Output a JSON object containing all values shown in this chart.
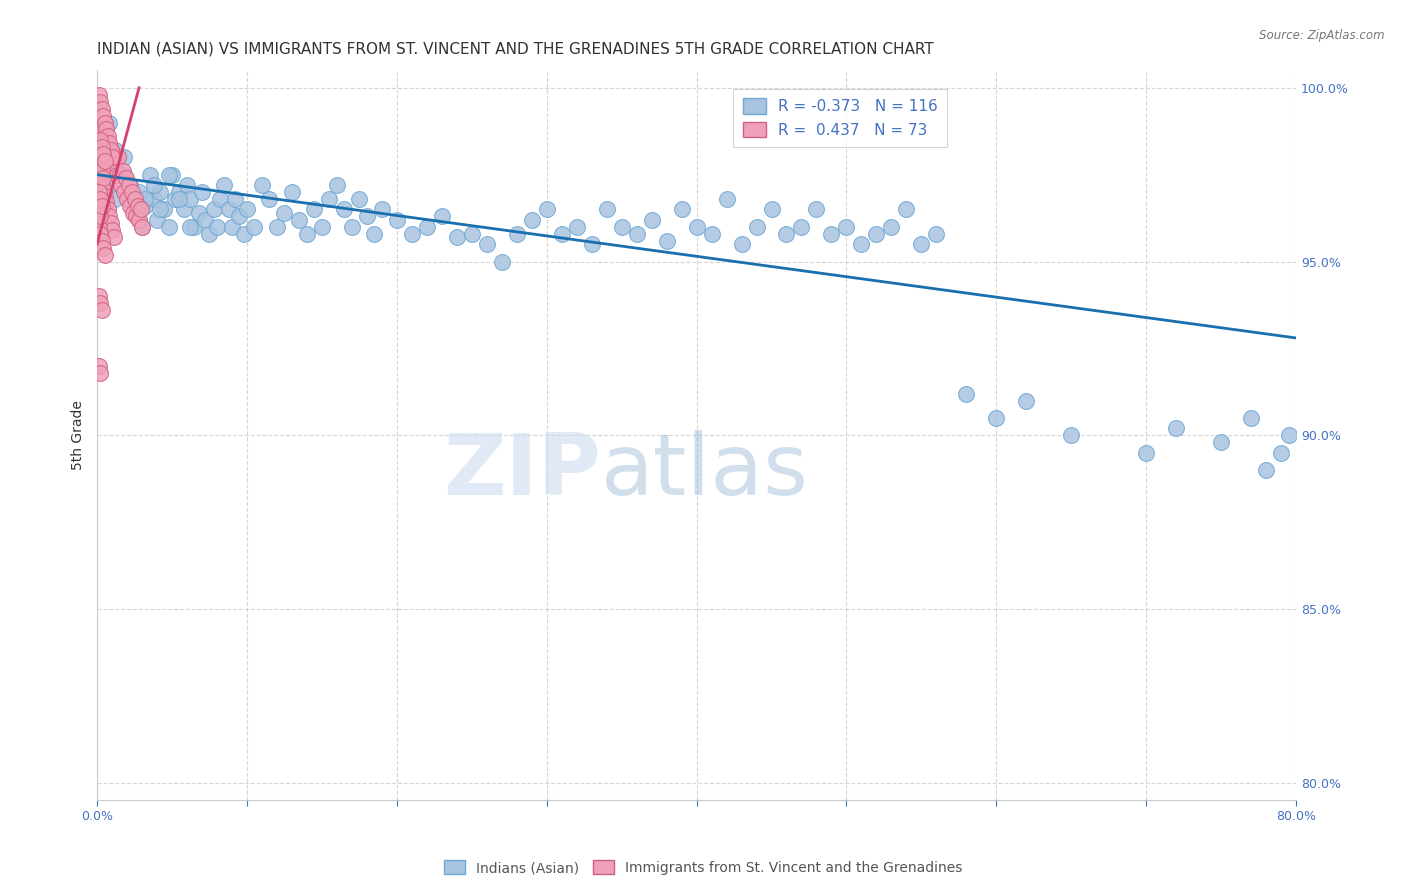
{
  "title": "INDIAN (ASIAN) VS IMMIGRANTS FROM ST. VINCENT AND THE GRENADINES 5TH GRADE CORRELATION CHART",
  "source": "Source: ZipAtlas.com",
  "ylabel": "5th Grade",
  "xlim": [
    0.0,
    0.8
  ],
  "ylim": [
    0.795,
    1.005
  ],
  "yticks": [
    0.8,
    0.85,
    0.9,
    0.95,
    1.0
  ],
  "ytick_labels": [
    "80.0%",
    "85.0%",
    "90.0%",
    "95.0%",
    "100.0%"
  ],
  "xticks": [
    0.0,
    0.1,
    0.2,
    0.3,
    0.4,
    0.5,
    0.6,
    0.7,
    0.8
  ],
  "xtick_labels": [
    "0.0%",
    "",
    "",
    "",
    "",
    "",
    "",
    "",
    "80.0%"
  ],
  "blue_color": "#a8c4e0",
  "pink_color": "#f0a0b8",
  "blue_line_color": "#1a6faf",
  "pink_line_color": "#d44070",
  "legend_blue_R": "-0.373",
  "legend_blue_N": "116",
  "legend_pink_R": "0.437",
  "legend_pink_N": "73",
  "legend_label_blue": "Indians (Asian)",
  "legend_label_pink": "Immigrants from St. Vincent and the Grenadines",
  "watermark_zip": "ZIP",
  "watermark_atlas": "atlas",
  "blue_scatter_x": [
    0.005,
    0.008,
    0.01,
    0.012,
    0.015,
    0.018,
    0.02,
    0.022,
    0.025,
    0.028,
    0.03,
    0.032,
    0.035,
    0.038,
    0.04,
    0.042,
    0.045,
    0.048,
    0.05,
    0.052,
    0.055,
    0.058,
    0.06,
    0.062,
    0.065,
    0.068,
    0.07,
    0.072,
    0.075,
    0.078,
    0.08,
    0.082,
    0.085,
    0.088,
    0.09,
    0.092,
    0.095,
    0.098,
    0.1,
    0.105,
    0.11,
    0.115,
    0.12,
    0.125,
    0.13,
    0.135,
    0.14,
    0.145,
    0.15,
    0.155,
    0.16,
    0.165,
    0.17,
    0.175,
    0.18,
    0.185,
    0.19,
    0.2,
    0.21,
    0.22,
    0.23,
    0.24,
    0.25,
    0.26,
    0.27,
    0.28,
    0.29,
    0.3,
    0.31,
    0.32,
    0.33,
    0.34,
    0.35,
    0.36,
    0.37,
    0.38,
    0.39,
    0.4,
    0.41,
    0.42,
    0.43,
    0.44,
    0.45,
    0.46,
    0.47,
    0.48,
    0.49,
    0.5,
    0.51,
    0.52,
    0.53,
    0.54,
    0.55,
    0.56,
    0.58,
    0.6,
    0.62,
    0.65,
    0.7,
    0.72,
    0.75,
    0.77,
    0.78,
    0.79,
    0.795,
    0.008,
    0.012,
    0.018,
    0.022,
    0.028,
    0.032,
    0.038,
    0.042,
    0.048,
    0.055,
    0.062
  ],
  "blue_scatter_y": [
    0.985,
    0.99,
    0.978,
    0.982,
    0.975,
    0.98,
    0.968,
    0.972,
    0.965,
    0.97,
    0.96,
    0.966,
    0.975,
    0.968,
    0.962,
    0.97,
    0.965,
    0.96,
    0.975,
    0.968,
    0.97,
    0.965,
    0.972,
    0.968,
    0.96,
    0.964,
    0.97,
    0.962,
    0.958,
    0.965,
    0.96,
    0.968,
    0.972,
    0.965,
    0.96,
    0.968,
    0.963,
    0.958,
    0.965,
    0.96,
    0.972,
    0.968,
    0.96,
    0.964,
    0.97,
    0.962,
    0.958,
    0.965,
    0.96,
    0.968,
    0.972,
    0.965,
    0.96,
    0.968,
    0.963,
    0.958,
    0.965,
    0.962,
    0.958,
    0.96,
    0.963,
    0.957,
    0.958,
    0.955,
    0.95,
    0.958,
    0.962,
    0.965,
    0.958,
    0.96,
    0.955,
    0.965,
    0.96,
    0.958,
    0.962,
    0.956,
    0.965,
    0.96,
    0.958,
    0.968,
    0.955,
    0.96,
    0.965,
    0.958,
    0.96,
    0.965,
    0.958,
    0.96,
    0.955,
    0.958,
    0.96,
    0.965,
    0.955,
    0.958,
    0.912,
    0.905,
    0.91,
    0.9,
    0.895,
    0.902,
    0.898,
    0.905,
    0.89,
    0.895,
    0.9,
    0.972,
    0.968,
    0.975,
    0.97,
    0.962,
    0.968,
    0.972,
    0.965,
    0.975,
    0.968,
    0.96
  ],
  "pink_scatter_x": [
    0.001,
    0.002,
    0.003,
    0.004,
    0.005,
    0.006,
    0.007,
    0.008,
    0.009,
    0.01,
    0.011,
    0.012,
    0.013,
    0.014,
    0.015,
    0.016,
    0.017,
    0.018,
    0.019,
    0.02,
    0.021,
    0.022,
    0.023,
    0.024,
    0.025,
    0.026,
    0.027,
    0.028,
    0.029,
    0.03,
    0.001,
    0.002,
    0.003,
    0.004,
    0.005,
    0.006,
    0.007,
    0.008,
    0.009,
    0.01,
    0.002,
    0.003,
    0.004,
    0.005,
    0.006,
    0.007,
    0.008,
    0.009,
    0.01,
    0.011,
    0.001,
    0.002,
    0.003,
    0.004,
    0.005,
    0.001,
    0.002,
    0.003,
    0.001,
    0.002,
    0.001,
    0.002,
    0.001,
    0.002,
    0.003,
    0.004,
    0.002,
    0.003,
    0.004,
    0.005,
    0.001,
    0.002,
    0.003
  ],
  "pink_scatter_y": [
    0.99,
    0.985,
    0.988,
    0.982,
    0.986,
    0.98,
    0.984,
    0.978,
    0.982,
    0.976,
    0.98,
    0.978,
    0.975,
    0.98,
    0.975,
    0.972,
    0.976,
    0.97,
    0.974,
    0.968,
    0.972,
    0.966,
    0.97,
    0.964,
    0.968,
    0.963,
    0.966,
    0.962,
    0.965,
    0.96,
    0.998,
    0.996,
    0.994,
    0.992,
    0.99,
    0.988,
    0.986,
    0.984,
    0.982,
    0.98,
    0.975,
    0.973,
    0.971,
    0.969,
    0.967,
    0.965,
    0.963,
    0.961,
    0.959,
    0.957,
    0.96,
    0.958,
    0.956,
    0.954,
    0.952,
    0.94,
    0.938,
    0.936,
    0.92,
    0.918,
    0.965,
    0.963,
    0.98,
    0.978,
    0.976,
    0.974,
    0.985,
    0.983,
    0.981,
    0.979,
    0.97,
    0.968,
    0.966
  ],
  "blue_line_x0": 0.0,
  "blue_line_x1": 0.8,
  "blue_line_y0": 0.975,
  "blue_line_y1": 0.928,
  "pink_line_x0": 0.0,
  "pink_line_x1": 0.028,
  "pink_line_y0": 0.955,
  "pink_line_y1": 1.0,
  "title_color": "#333333",
  "axis_color": "#4472c4",
  "grid_color": "#cccccc",
  "title_fontsize": 11,
  "label_fontsize": 10,
  "tick_fontsize": 9
}
